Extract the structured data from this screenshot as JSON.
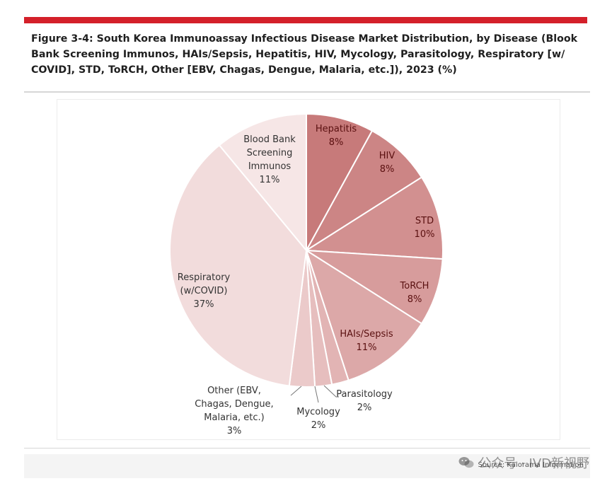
{
  "title": "Figure 3-4: South Korea Immunoassay Infectious Disease Market Distribution, by Disease (Blook Bank Screening Immunos, HAIs/Sepsis, Hepatitis, HIV, Mycology, Parasitology, Respiratory [w/ COVID], STD, ToRCH, Other [EBV, Chagas, Dengue, Malaria, etc.]), 2023 (%)",
  "source": "Source: Kalorama Information",
  "watermark": "公众号 · IVD新视野",
  "colors": {
    "top_bar": "#d4202a"
  },
  "chart_data": {
    "type": "pie",
    "title": "",
    "start": "12 o'clock, clockwise",
    "slices": [
      {
        "label": [
          "Hepatitis"
        ],
        "pct": "8%",
        "value": 8,
        "color": "#c77a7a"
      },
      {
        "label": [
          "HIV"
        ],
        "pct": "8%",
        "value": 8,
        "color": "#cc8585"
      },
      {
        "label": [
          "STD"
        ],
        "pct": "10%",
        "value": 10,
        "color": "#d29090"
      },
      {
        "label": [
          "ToRCH"
        ],
        "pct": "8%",
        "value": 8,
        "color": "#d79c9c"
      },
      {
        "label": [
          "HAIs/Sepsis"
        ],
        "pct": "11%",
        "value": 11,
        "color": "#dca8a8"
      },
      {
        "label": [
          "Parasitology"
        ],
        "pct": "2%",
        "value": 2,
        "color": "#e2b4b4"
      },
      {
        "label": [
          "Mycology"
        ],
        "pct": "2%",
        "value": 2,
        "color": "#e6bebe"
      },
      {
        "label": [
          "Other (EBV,",
          "Chagas, Dengue,",
          "Malaria, etc.)"
        ],
        "pct": "3%",
        "value": 3,
        "color": "#ebcaca"
      },
      {
        "label": [
          "Respiratory",
          "(w/COVID)"
        ],
        "pct": "37%",
        "value": 37,
        "color": "#f2dcdc"
      },
      {
        "label": [
          "Blood Bank",
          "Screening",
          "Immunos"
        ],
        "pct": "11%",
        "value": 11,
        "color": "#f6e6e6"
      }
    ]
  }
}
